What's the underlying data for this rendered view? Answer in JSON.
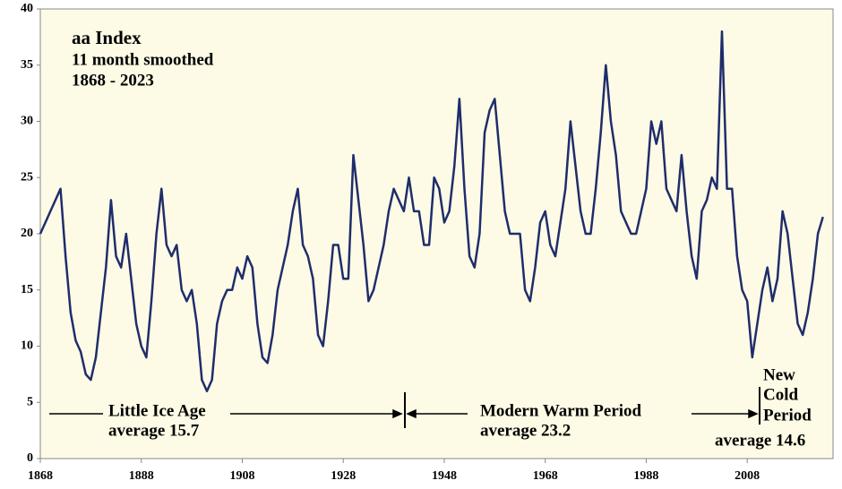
{
  "chart_data": {
    "type": "line",
    "title": "aa Index",
    "subtitle": [
      "11 month smoothed",
      "1868 - 2023"
    ],
    "annotations": [
      "Little Ice Age",
      "average 15.7",
      "Modern Warm Period",
      "average 23.2",
      "New",
      "Cold",
      "Period",
      "average 14.6"
    ],
    "x": [
      1868,
      1869,
      1870,
      1871,
      1872,
      1873,
      1874,
      1875,
      1876,
      1877,
      1878,
      1879,
      1880,
      1881,
      1882,
      1883,
      1884,
      1885,
      1886,
      1887,
      1888,
      1889,
      1890,
      1891,
      1892,
      1893,
      1894,
      1895,
      1896,
      1897,
      1898,
      1899,
      1900,
      1901,
      1902,
      1903,
      1904,
      1905,
      1906,
      1907,
      1908,
      1909,
      1910,
      1911,
      1912,
      1913,
      1914,
      1915,
      1916,
      1917,
      1918,
      1919,
      1920,
      1921,
      1922,
      1923,
      1924,
      1925,
      1926,
      1927,
      1928,
      1929,
      1930,
      1931,
      1932,
      1933,
      1934,
      1935,
      1936,
      1937,
      1938,
      1939,
      1940,
      1941,
      1942,
      1943,
      1944,
      1945,
      1946,
      1947,
      1948,
      1949,
      1950,
      1951,
      1952,
      1953,
      1954,
      1955,
      1956,
      1957,
      1958,
      1959,
      1960,
      1961,
      1962,
      1963,
      1964,
      1965,
      1966,
      1967,
      1968,
      1969,
      1970,
      1971,
      1972,
      1973,
      1974,
      1975,
      1976,
      1977,
      1978,
      1979,
      1980,
      1981,
      1982,
      1983,
      1984,
      1985,
      1986,
      1987,
      1988,
      1989,
      1990,
      1991,
      1992,
      1993,
      1994,
      1995,
      1996,
      1997,
      1998,
      1999,
      2000,
      2001,
      2002,
      2003,
      2004,
      2005,
      2006,
      2007,
      2008,
      2009,
      2010,
      2011,
      2012,
      2013,
      2014,
      2015,
      2016,
      2017,
      2018,
      2019,
      2020,
      2021,
      2022,
      2023
    ],
    "series": [
      {
        "name": "aa Index",
        "color": "#1f2d6b",
        "values": [
          20,
          21,
          22,
          23,
          24,
          18,
          13,
          10.5,
          9.5,
          7.5,
          7,
          9,
          13,
          17,
          23,
          18,
          17,
          20,
          16,
          12,
          10,
          9,
          14,
          20,
          24,
          19,
          18,
          19,
          15,
          14,
          15,
          12,
          7,
          6,
          7,
          12,
          14,
          15,
          15,
          17,
          16,
          18,
          17,
          12,
          9,
          8.5,
          11,
          15,
          17,
          19,
          22,
          24,
          19,
          18,
          16,
          11,
          10,
          14,
          19,
          19,
          16,
          16,
          27,
          23,
          19,
          14,
          15,
          17,
          19,
          22,
          24,
          23,
          22,
          25,
          22,
          22,
          19,
          19,
          25,
          24,
          21,
          22,
          26,
          32,
          24,
          18,
          17,
          20,
          29,
          31,
          32,
          27,
          22,
          20,
          20,
          20,
          15,
          14,
          17,
          21,
          22,
          19,
          18,
          21,
          24,
          30,
          26,
          22,
          20,
          20,
          24,
          29,
          35,
          30,
          27,
          22,
          21,
          20,
          20,
          22,
          24,
          30,
          28,
          30,
          24,
          23,
          22,
          27,
          22,
          18,
          16,
          22,
          23,
          25,
          24,
          38,
          24,
          24,
          18,
          15,
          14,
          9,
          12,
          15,
          17,
          14,
          16,
          22,
          20,
          16,
          12,
          11,
          13,
          16,
          20,
          21.5
        ]
      }
    ],
    "xlim": [
      1868,
      2025
    ],
    "xticks": [
      1868,
      1888,
      1908,
      1928,
      1948,
      1968,
      1988,
      2008
    ],
    "ylim": [
      0,
      40
    ],
    "yticks": [
      0,
      5,
      10,
      15,
      20,
      25,
      30,
      35,
      40
    ]
  }
}
